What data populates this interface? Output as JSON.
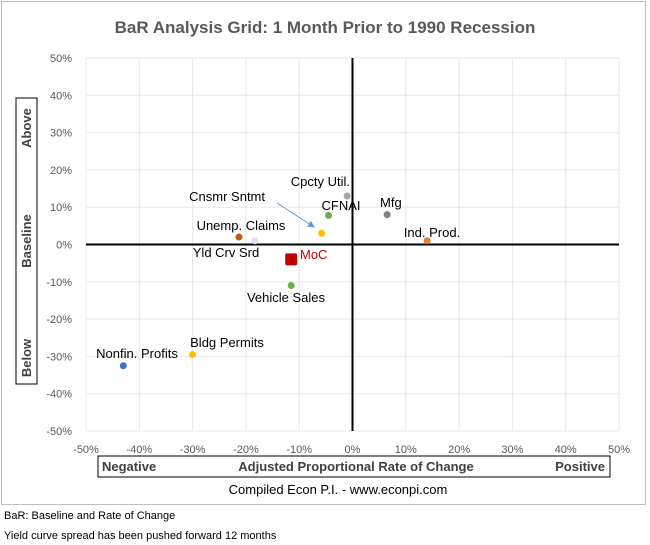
{
  "chart_data": {
    "type": "scatter",
    "title": "BaR Analysis Grid: 1 Month Prior to 1990 Recession",
    "xlim": [
      -0.5,
      0.5
    ],
    "ylim": [
      -0.5,
      0.5
    ],
    "x_ticks": [
      "-50%",
      "-40%",
      "-30%",
      "-20%",
      "-10%",
      "0%",
      "10%",
      "20%",
      "30%",
      "40%",
      "50%"
    ],
    "y_ticks": [
      "50%",
      "40%",
      "30%",
      "20%",
      "10%",
      "0%",
      "-10%",
      "-20%",
      "-30%",
      "-40%",
      "-50%"
    ],
    "x_axis_box": {
      "left": "Negative",
      "center": "Adjusted Proportional Rate of Change",
      "right": "Positive"
    },
    "y_axis_box": {
      "top": "Above",
      "middle": "Baseline",
      "bottom": "Below"
    },
    "credit": "Compiled Econ P.I. - www.econpi.com",
    "points": [
      {
        "label": "Cpcty Util.",
        "x": -0.01,
        "y": 0.13,
        "color": "#a5a5a5"
      },
      {
        "label": "Mfg",
        "x": 0.065,
        "y": 0.08,
        "color": "#7f7f7f"
      },
      {
        "label": "Ind. Prod.",
        "x": 0.14,
        "y": 0.01,
        "color": "#ed7d31"
      },
      {
        "label": "CFNAI",
        "x": -0.045,
        "y": 0.078,
        "color": "#70ad47"
      },
      {
        "label": "Cnsmr Sntmt",
        "x": -0.058,
        "y": 0.03,
        "color": "#ffc000"
      },
      {
        "label": "Unemp. Claims",
        "x": -0.213,
        "y": 0.02,
        "color": "#c55a11"
      },
      {
        "label": "Yld Crv Srd",
        "x": -0.183,
        "y": 0.01,
        "color": "#dae3f3"
      },
      {
        "label": "MoC",
        "x": -0.115,
        "y": -0.04,
        "color": "#c00000"
      },
      {
        "label": "Vehicle Sales",
        "x": -0.115,
        "y": -0.11,
        "color": "#70ad47"
      },
      {
        "label": "Bldg Permits",
        "x": -0.3,
        "y": -0.295,
        "color": "#ffc000"
      },
      {
        "label": "Nonfin. Profits",
        "x": -0.43,
        "y": -0.325,
        "color": "#4472c4"
      }
    ]
  },
  "notes": [
    "BaR: Baseline and Rate of Change",
    "Yield curve spread has been pushed forward 12 months"
  ]
}
